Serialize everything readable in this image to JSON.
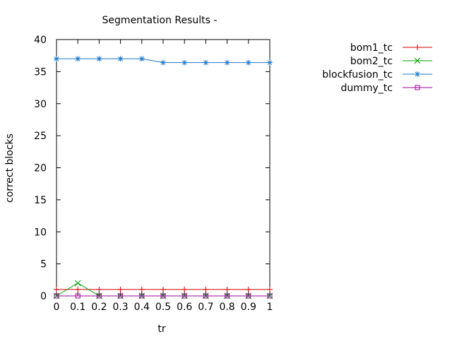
{
  "chart_data": {
    "type": "line",
    "title": "Segmentation Results -",
    "xlabel": "tr",
    "ylabel": "correct blocks",
    "xlim": [
      0,
      1
    ],
    "ylim": [
      0,
      40
    ],
    "x": [
      0,
      0.1,
      0.2,
      0.3,
      0.4,
      0.5,
      0.6,
      0.7,
      0.8,
      0.9,
      1
    ],
    "x_ticks": [
      "0",
      "0.1",
      "0.2",
      "0.3",
      "0.4",
      "0.5",
      "0.6",
      "0.7",
      "0.8",
      "0.9",
      "1"
    ],
    "y_ticks": [
      "0",
      "5",
      "10",
      "15",
      "20",
      "25",
      "30",
      "35",
      "40"
    ],
    "grid": false,
    "legend_position": "outside-right-top",
    "series": [
      {
        "name": "bom1_tc",
        "color": "#d00000",
        "marker": "plus",
        "values": [
          1,
          1,
          1,
          1,
          1,
          1,
          1,
          1,
          1,
          1,
          1
        ]
      },
      {
        "name": "bom2_tc",
        "color": "#00a000",
        "marker": "cross",
        "values": [
          0,
          2,
          0,
          0,
          0,
          0,
          0,
          0,
          0,
          0,
          0
        ]
      },
      {
        "name": "blockfusion_tc",
        "color": "#1e78c8",
        "marker": "star",
        "values": [
          37,
          37,
          37,
          37,
          37,
          36.4,
          36.4,
          36.4,
          36.4,
          36.4,
          36.4
        ]
      },
      {
        "name": "dummy_tc",
        "color": "#a000a0",
        "marker": "square",
        "values": [
          0,
          0,
          0,
          0,
          0,
          0,
          0,
          0,
          0,
          0,
          0
        ]
      }
    ]
  }
}
